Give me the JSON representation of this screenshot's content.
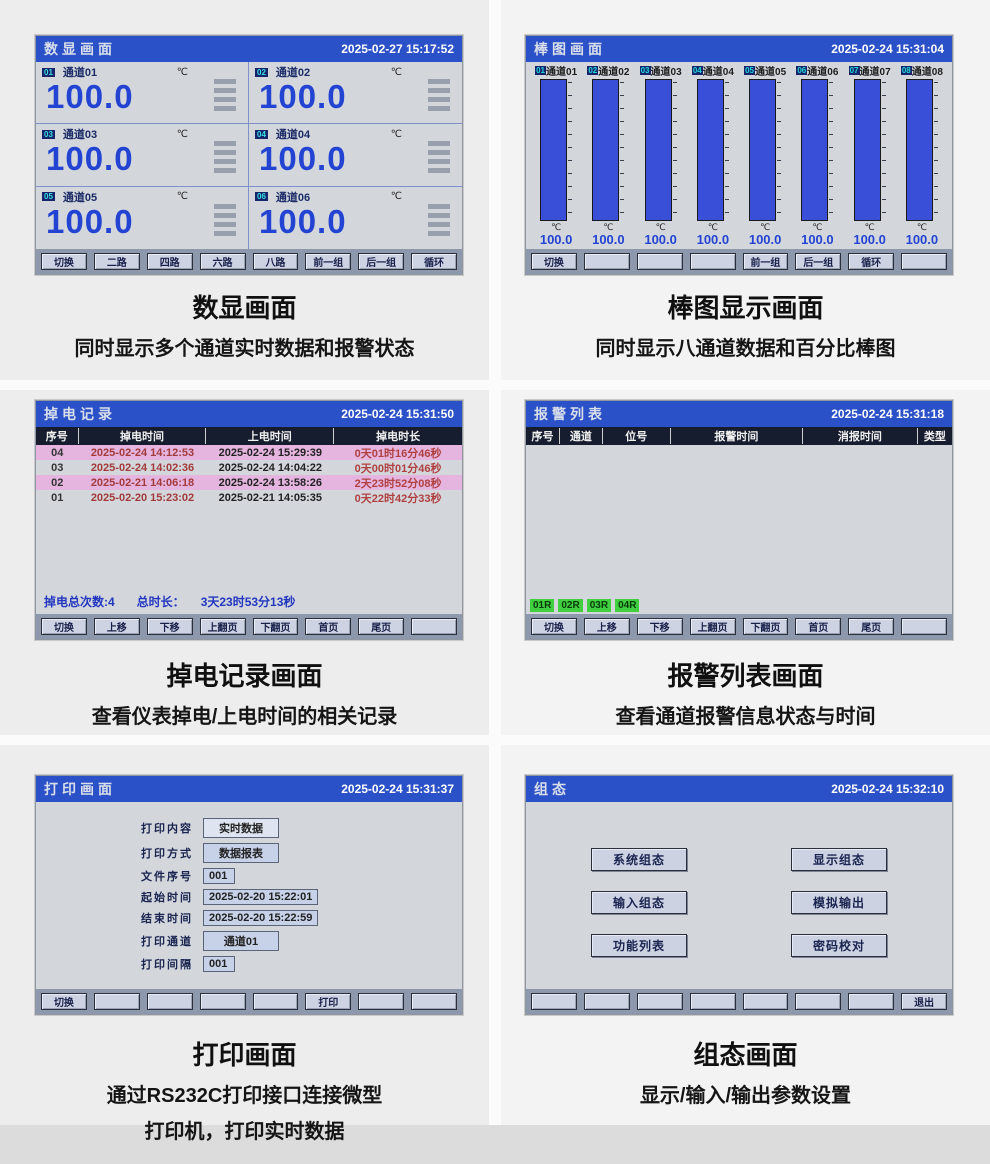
{
  "panels": {
    "digital": {
      "title": "数显画面",
      "timestamp": "2025-02-27 15:17:52",
      "channels": [
        {
          "num": "01",
          "name": "通道01",
          "unit": "℃",
          "value": "100.0"
        },
        {
          "num": "02",
          "name": "通道02",
          "unit": "℃",
          "value": "100.0"
        },
        {
          "num": "03",
          "name": "通道03",
          "unit": "℃",
          "value": "100.0"
        },
        {
          "num": "04",
          "name": "通道04",
          "unit": "℃",
          "value": "100.0"
        },
        {
          "num": "05",
          "name": "通道05",
          "unit": "℃",
          "value": "100.0"
        },
        {
          "num": "06",
          "name": "通道06",
          "unit": "℃",
          "value": "100.0"
        }
      ],
      "buttons": [
        "切换",
        "二路",
        "四路",
        "六路",
        "八路",
        "前一组",
        "后一组",
        "循环"
      ],
      "caption_title": "数显画面",
      "caption_desc": [
        "同时显示多个通道实时数据和报警状态"
      ]
    },
    "bargraph": {
      "title": "棒图画面",
      "timestamp": "2025-02-24 15:31:04",
      "channels": [
        {
          "num": "01",
          "name": "通道01",
          "unit": "℃",
          "value": "100.0",
          "percent": 100
        },
        {
          "num": "02",
          "name": "通道02",
          "unit": "℃",
          "value": "100.0",
          "percent": 100
        },
        {
          "num": "03",
          "name": "通道03",
          "unit": "℃",
          "value": "100.0",
          "percent": 100
        },
        {
          "num": "04",
          "name": "通道04",
          "unit": "℃",
          "value": "100.0",
          "percent": 100
        },
        {
          "num": "05",
          "name": "通道05",
          "unit": "℃",
          "value": "100.0",
          "percent": 100
        },
        {
          "num": "06",
          "name": "通道06",
          "unit": "℃",
          "value": "100.0",
          "percent": 100
        },
        {
          "num": "07",
          "name": "通道07",
          "unit": "℃",
          "value": "100.0",
          "percent": 100
        },
        {
          "num": "08",
          "name": "通道08",
          "unit": "℃",
          "value": "100.0",
          "percent": 100
        }
      ],
      "buttons": [
        "切换",
        "",
        "",
        "",
        "前一组",
        "后一组",
        "循环",
        ""
      ],
      "caption_title": "棒图显示画面",
      "caption_desc": [
        "同时显示八通道数据和百分比棒图"
      ]
    },
    "poweroff": {
      "title": "掉电记录",
      "timestamp": "2025-02-24 15:31:50",
      "columns": [
        "序号",
        "掉电时间",
        "上电时间",
        "掉电时长"
      ],
      "rows": [
        {
          "seq": "04",
          "off": "2025-02-24 14:12:53",
          "on": "2025-02-24 15:29:39",
          "dur": "0天01时16分46秒",
          "highlight": true
        },
        {
          "seq": "03",
          "off": "2025-02-24 14:02:36",
          "on": "2025-02-24 14:04:22",
          "dur": "0天00时01分46秒",
          "highlight": false
        },
        {
          "seq": "02",
          "off": "2025-02-21 14:06:18",
          "on": "2025-02-24 13:58:26",
          "dur": "2天23时52分08秒",
          "highlight": true
        },
        {
          "seq": "01",
          "off": "2025-02-20 15:23:02",
          "on": "2025-02-21 14:05:35",
          "dur": "0天22时42分33秒",
          "highlight": false
        }
      ],
      "summary_count": "掉电总次数:4",
      "summary_label": "总时长：",
      "summary_value": "3天23时53分13秒",
      "buttons": [
        "切换",
        "上移",
        "下移",
        "上翻页",
        "下翻页",
        "首页",
        "尾页",
        ""
      ],
      "caption_title": "掉电记录画面",
      "caption_desc": [
        "查看仪表掉电/上电时间的相关记录"
      ]
    },
    "alarm": {
      "title": "报警列表",
      "timestamp": "2025-02-24 15:31:18",
      "columns": [
        "序号",
        "通道",
        "位号",
        "报警时间",
        "消报时间",
        "类型"
      ],
      "badges": [
        "01R",
        "02R",
        "03R",
        "04R"
      ],
      "buttons": [
        "切换",
        "上移",
        "下移",
        "上翻页",
        "下翻页",
        "首页",
        "尾页",
        ""
      ],
      "caption_title": "报警列表画面",
      "caption_desc": [
        "查看通道报警信息状态与时间"
      ]
    },
    "print": {
      "title": "打印画面",
      "timestamp": "2025-02-24 15:31:37",
      "fields": [
        {
          "label": "打印内容",
          "value": "实时数据"
        },
        {
          "label": "打印方式",
          "value": "数据报表"
        },
        {
          "label": "文件序号",
          "value": "001"
        },
        {
          "label": "起始时间",
          "value": "2025-02-20 15:22:01"
        },
        {
          "label": "结束时间",
          "value": "2025-02-20 15:22:59"
        },
        {
          "label": "打印通道",
          "value": "通道01"
        },
        {
          "label": "打印间隔",
          "value": "001"
        }
      ],
      "buttons": [
        "切换",
        "",
        "",
        "",
        "",
        "打印",
        "",
        ""
      ],
      "caption_title": "打印画面",
      "caption_desc": [
        "通过RS232C打印接口连接微型",
        "打印机，打印实时数据"
      ]
    },
    "config": {
      "title": "组态",
      "timestamp": "2025-02-24 15:32:10",
      "menu_buttons": [
        "系统组态",
        "显示组态",
        "输入组态",
        "模拟输出",
        "功能列表",
        "密码校对"
      ],
      "buttons": [
        "",
        "",
        "",
        "",
        "",
        "",
        "",
        "退出"
      ],
      "caption_title": "组态画面",
      "caption_desc": [
        "显示/输入/输出参数设置"
      ]
    }
  },
  "colors": {
    "header_blue": "#2b51c9",
    "value_blue": "#2343d2",
    "alarm_green": "#3fcf3f",
    "highlight_pink": "#e5b5e0",
    "record_red": "#a33a3a"
  }
}
